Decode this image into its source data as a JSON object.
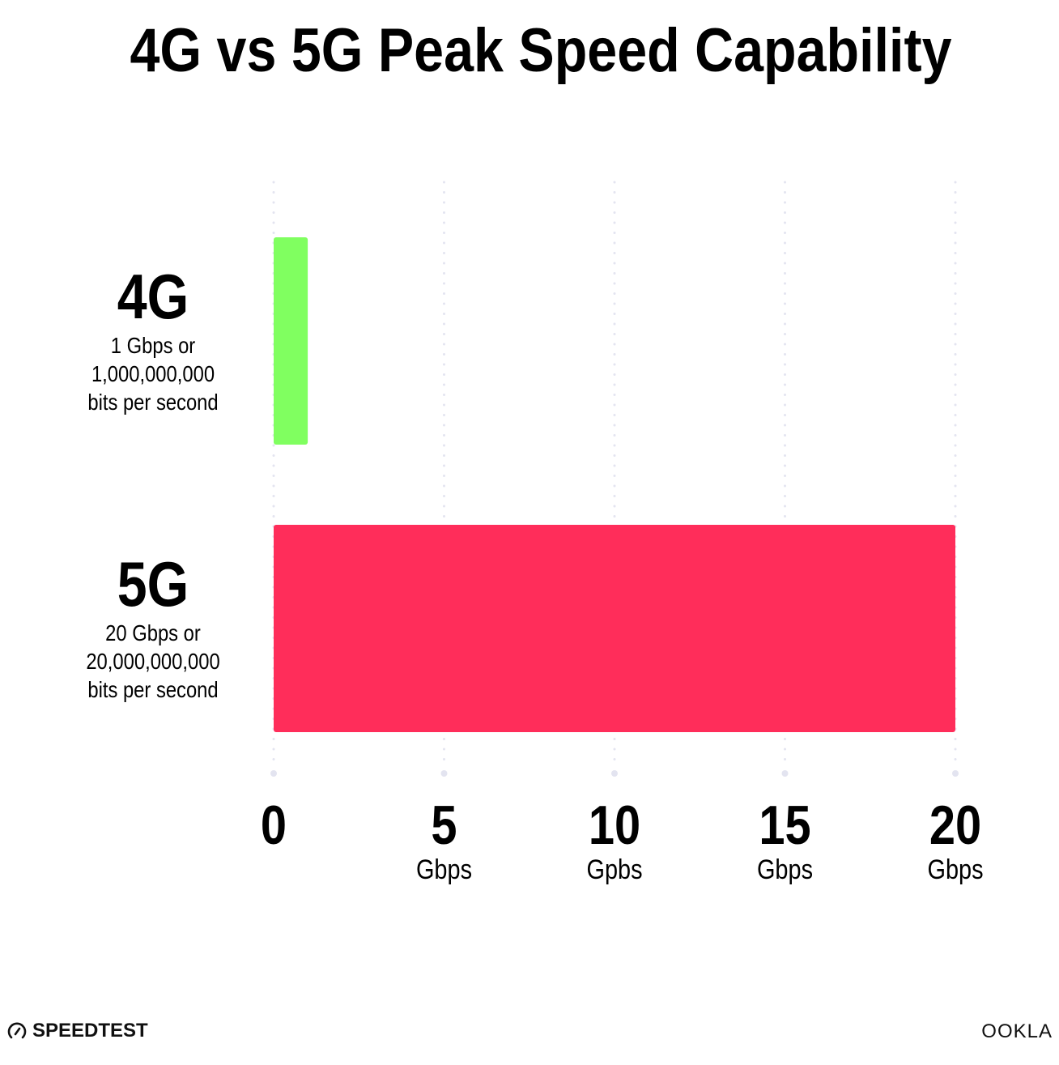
{
  "chart_data": {
    "type": "bar",
    "orientation": "horizontal",
    "title": "4G vs 5G Peak Speed Capability",
    "categories": [
      "4G",
      "5G"
    ],
    "category_sublabels": [
      [
        "1 Gbps or",
        "1,000,000,000",
        "bits per second"
      ],
      [
        "20 Gbps or",
        "20,000,000,000",
        "bits per second"
      ]
    ],
    "values": [
      1,
      20
    ],
    "unit": "Gbps",
    "colors": [
      "#80ff60",
      "#ff2d5a"
    ],
    "xlim": [
      0,
      20
    ],
    "ticks": [
      {
        "value": 0,
        "label": "0",
        "unit": ""
      },
      {
        "value": 5,
        "label": "5",
        "unit": "Gbps"
      },
      {
        "value": 10,
        "label": "10",
        "unit": "Gpbs"
      },
      {
        "value": 15,
        "label": "15",
        "unit": "Gbps"
      },
      {
        "value": 20,
        "label": "20",
        "unit": "Gbps"
      }
    ],
    "grid": true,
    "grid_color": "#e3e4f0",
    "legend": "none"
  },
  "branding": {
    "left_logo": "SPEEDTEST",
    "right_logo": "OOKLA",
    "left_icon": "speedometer-icon"
  }
}
